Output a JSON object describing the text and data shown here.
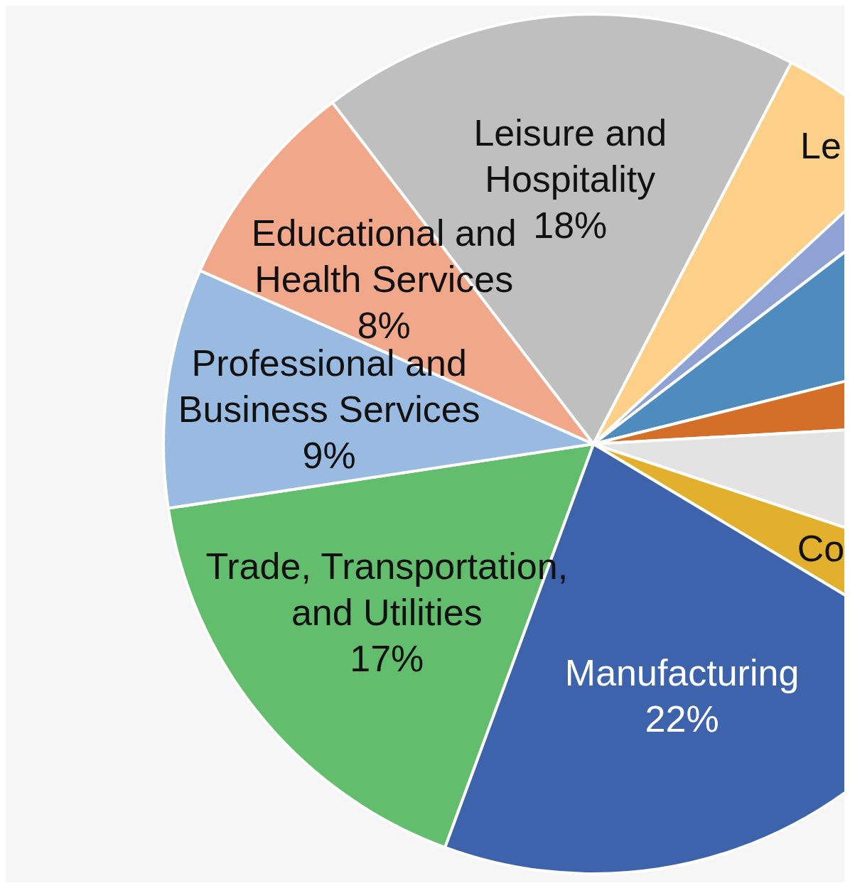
{
  "chart_data": {
    "type": "pie",
    "categories": [
      "Leisure and Hospitality",
      "Le",
      null,
      null,
      null,
      null,
      "Co",
      "Manufacturing",
      "Trade, Transportation, and Utilities",
      "Professional and Business Services",
      "Educational and Health Services"
    ],
    "values": [
      18,
      5.5,
      1.5,
      6.5,
      3,
      6,
      3.5,
      22,
      17,
      9,
      8
    ],
    "value_labels": [
      "18%",
      null,
      null,
      null,
      null,
      null,
      null,
      "22%",
      "17%",
      "9%",
      "8%"
    ],
    "colors": [
      "#bfbfbf",
      "#fdd08a",
      "#8fa2d4",
      "#4e8bbf",
      "#d46f2a",
      "#e3e3e3",
      "#e2b02c",
      "#3d63ad",
      "#62be6d",
      "#9abbe1",
      "#f0a78a"
    ]
  }
}
